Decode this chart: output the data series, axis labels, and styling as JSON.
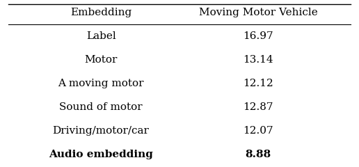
{
  "col_headers": [
    "Embedding",
    "Moving Motor Vehicle"
  ],
  "rows": [
    [
      "Label",
      "16.97"
    ],
    [
      "Motor",
      "13.14"
    ],
    [
      "A moving motor",
      "12.12"
    ],
    [
      "Sound of motor",
      "12.87"
    ],
    [
      "Driving/motor/car",
      "12.07"
    ],
    [
      "Audio embedding",
      "8.88"
    ]
  ],
  "bold_row": 5,
  "background_color": "#ffffff",
  "text_color": "#000000",
  "font_size": 11,
  "header_font_size": 11
}
